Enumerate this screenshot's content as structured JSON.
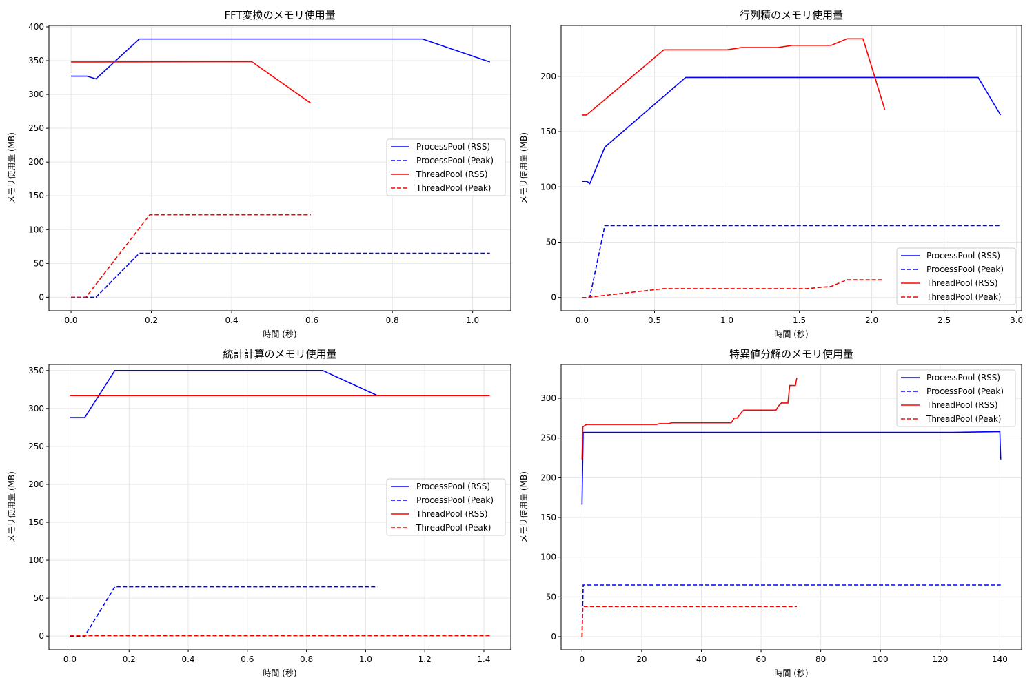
{
  "chart_data": [
    {
      "type": "line",
      "title": "FFT変換のメモリ使用量",
      "xlabel": "時間 (秒)",
      "ylabel": "メモリ使用量 (MB)",
      "xlim": [
        -0.055,
        1.095
      ],
      "ylim": [
        -20,
        402
      ],
      "xticks": [
        0.0,
        0.2,
        0.4,
        0.6,
        0.8,
        1.0
      ],
      "xtick_labels": [
        "0.0",
        "0.2",
        "0.4",
        "0.6",
        "0.8",
        "1.0"
      ],
      "yticks": [
        0,
        50,
        100,
        150,
        200,
        250,
        300,
        350,
        400
      ],
      "ytick_labels": [
        "0",
        "50",
        "100",
        "150",
        "200",
        "250",
        "300",
        "350",
        "400"
      ],
      "grid": true,
      "legend_position": "center-right",
      "series": [
        {
          "name": "ProcessPool (RSS)",
          "color": "#0000ff",
          "dash": "solid",
          "points": [
            [
              0.0,
              327
            ],
            [
              0.04,
              327
            ],
            [
              0.062,
              323
            ],
            [
              0.17,
              382
            ],
            [
              0.875,
              382
            ],
            [
              1.043,
              348
            ]
          ]
        },
        {
          "name": "ProcessPool (Peak)",
          "color": "#0000ff",
          "dash": "dashed",
          "points": [
            [
              0.0,
              0
            ],
            [
              0.062,
              0
            ],
            [
              0.17,
              65
            ],
            [
              1.043,
              65
            ]
          ]
        },
        {
          "name": "ThreadPool (RSS)",
          "color": "#ff0000",
          "dash": "solid",
          "points": [
            [
              0.0,
              348
            ],
            [
              0.45,
              348.5
            ],
            [
              0.597,
              287
            ]
          ]
        },
        {
          "name": "ThreadPool (Peak)",
          "color": "#ff0000",
          "dash": "dashed",
          "points": [
            [
              0.0,
              0
            ],
            [
              0.037,
              0
            ],
            [
              0.196,
              122
            ],
            [
              0.597,
              122
            ]
          ]
        }
      ]
    },
    {
      "type": "line",
      "title": "行列積のメモリ使用量",
      "xlabel": "時間 (秒)",
      "ylabel": "メモリ使用量 (MB)",
      "xlim": [
        -0.145,
        3.035
      ],
      "ylim": [
        -12,
        246
      ],
      "xticks": [
        0.0,
        0.5,
        1.0,
        1.5,
        2.0,
        2.5,
        3.0
      ],
      "xtick_labels": [
        "0.0",
        "0.5",
        "1.0",
        "1.5",
        "2.0",
        "2.5",
        "3.0"
      ],
      "yticks": [
        0,
        50,
        100,
        150,
        200
      ],
      "ytick_labels": [
        "0",
        "50",
        "100",
        "150",
        "200"
      ],
      "grid": true,
      "legend_position": "lower-right",
      "series": [
        {
          "name": "ProcessPool (RSS)",
          "color": "#0000ff",
          "dash": "solid",
          "points": [
            [
              0.0,
              105
            ],
            [
              0.035,
              105
            ],
            [
              0.053,
              103
            ],
            [
              0.157,
              136
            ],
            [
              0.715,
              199
            ],
            [
              2.735,
              199
            ],
            [
              2.89,
              165
            ]
          ]
        },
        {
          "name": "ProcessPool (Peak)",
          "color": "#0000ff",
          "dash": "dashed",
          "points": [
            [
              0.0,
              0
            ],
            [
              0.053,
              0
            ],
            [
              0.157,
              65
            ],
            [
              2.89,
              65
            ]
          ]
        },
        {
          "name": "ThreadPool (RSS)",
          "color": "#ff0000",
          "dash": "solid",
          "points": [
            [
              0.0,
              165
            ],
            [
              0.03,
              165
            ],
            [
              0.565,
              224
            ],
            [
              1.0,
              224
            ],
            [
              1.1,
              226
            ],
            [
              1.35,
              226
            ],
            [
              1.45,
              228
            ],
            [
              1.72,
              228
            ],
            [
              1.83,
              234
            ],
            [
              1.94,
              234
            ],
            [
              2.09,
              170
            ]
          ]
        },
        {
          "name": "ThreadPool (Peak)",
          "color": "#ff0000",
          "dash": "dashed",
          "points": [
            [
              0.0,
              0
            ],
            [
              0.03,
              0
            ],
            [
              0.565,
              8
            ],
            [
              1.55,
              8
            ],
            [
              1.72,
              10
            ],
            [
              1.83,
              16
            ],
            [
              2.07,
              16
            ]
          ]
        }
      ]
    },
    {
      "type": "line",
      "title": "統計計算のメモリ使用量",
      "xlabel": "時間 (秒)",
      "ylabel": "メモリ使用量 (MB)",
      "xlim": [
        -0.071,
        1.491
      ],
      "ylim": [
        -18,
        358
      ],
      "xticks": [
        0.0,
        0.2,
        0.4,
        0.6,
        0.8,
        1.0,
        1.2,
        1.4
      ],
      "xtick_labels": [
        "0.0",
        "0.2",
        "0.4",
        "0.6",
        "0.8",
        "1.0",
        "1.2",
        "1.4"
      ],
      "yticks": [
        0,
        50,
        100,
        150,
        200,
        250,
        300,
        350
      ],
      "ytick_labels": [
        "0",
        "50",
        "100",
        "150",
        "200",
        "250",
        "300",
        "350"
      ],
      "grid": true,
      "legend_position": "center-right",
      "series": [
        {
          "name": "ProcessPool (RSS)",
          "color": "#0000ff",
          "dash": "solid",
          "points": [
            [
              0.0,
              288
            ],
            [
              0.05,
              288
            ],
            [
              0.152,
              350
            ],
            [
              0.855,
              350
            ],
            [
              1.04,
              317
            ]
          ]
        },
        {
          "name": "ProcessPool (Peak)",
          "color": "#0000ff",
          "dash": "dashed",
          "points": [
            [
              0.0,
              0
            ],
            [
              0.05,
              0
            ],
            [
              0.152,
              65
            ],
            [
              1.04,
              65
            ]
          ]
        },
        {
          "name": "ThreadPool (RSS)",
          "color": "#ff0000",
          "dash": "solid",
          "points": [
            [
              0.0,
              317
            ],
            [
              1.42,
              317
            ]
          ]
        },
        {
          "name": "ThreadPool (Peak)",
          "color": "#ff0000",
          "dash": "dashed",
          "points": [
            [
              0.0,
              0.5
            ],
            [
              1.42,
              0.5
            ]
          ]
        }
      ]
    },
    {
      "type": "line",
      "title": "特異値分解のメモリ使用量",
      "xlabel": "時間 (秒)",
      "ylabel": "メモリ使用量 (MB)",
      "xlim": [
        -7.0,
        147.3
      ],
      "ylim": [
        -16.5,
        342.5
      ],
      "xticks": [
        0,
        20,
        40,
        60,
        80,
        100,
        120,
        140
      ],
      "xtick_labels": [
        "0",
        "20",
        "40",
        "60",
        "80",
        "100",
        "120",
        "140"
      ],
      "yticks": [
        0,
        50,
        100,
        150,
        200,
        250,
        300
      ],
      "ytick_labels": [
        "0",
        "50",
        "100",
        "150",
        "200",
        "250",
        "300"
      ],
      "grid": true,
      "legend_position": "upper-right",
      "series": [
        {
          "name": "ProcessPool (RSS)",
          "color": "#0000ff",
          "dash": "solid",
          "points": [
            [
              0.0,
              166
            ],
            [
              0.4,
              257
            ],
            [
              124,
              257
            ],
            [
              140,
              258
            ],
            [
              140.3,
              223
            ]
          ]
        },
        {
          "name": "ProcessPool (Peak)",
          "color": "#0000ff",
          "dash": "dashed",
          "points": [
            [
              0.0,
              0
            ],
            [
              0.4,
              65
            ],
            [
              140.3,
              65
            ]
          ]
        },
        {
          "name": "ThreadPool (RSS)",
          "color": "#ff0000",
          "dash": "solid",
          "points": [
            [
              0.0,
              223
            ],
            [
              0.3,
              264
            ],
            [
              1.5,
              267
            ],
            [
              25,
              267
            ],
            [
              26,
              268
            ],
            [
              29,
              268
            ],
            [
              30,
              269
            ],
            [
              50,
              269
            ],
            [
              51,
              275
            ],
            [
              52,
              275
            ],
            [
              53,
              280
            ],
            [
              53.6,
              283
            ],
            [
              54.2,
              285
            ],
            [
              65,
              285
            ],
            [
              65.8,
              290
            ],
            [
              66.8,
              294
            ],
            [
              69,
              294
            ],
            [
              69.6,
              316
            ],
            [
              71.5,
              316
            ],
            [
              72,
              326
            ]
          ]
        },
        {
          "name": "ThreadPool (Peak)",
          "color": "#ff0000",
          "dash": "dashed",
          "points": [
            [
              0.0,
              0
            ],
            [
              0.3,
              38
            ],
            [
              72,
              38
            ]
          ]
        }
      ]
    }
  ]
}
